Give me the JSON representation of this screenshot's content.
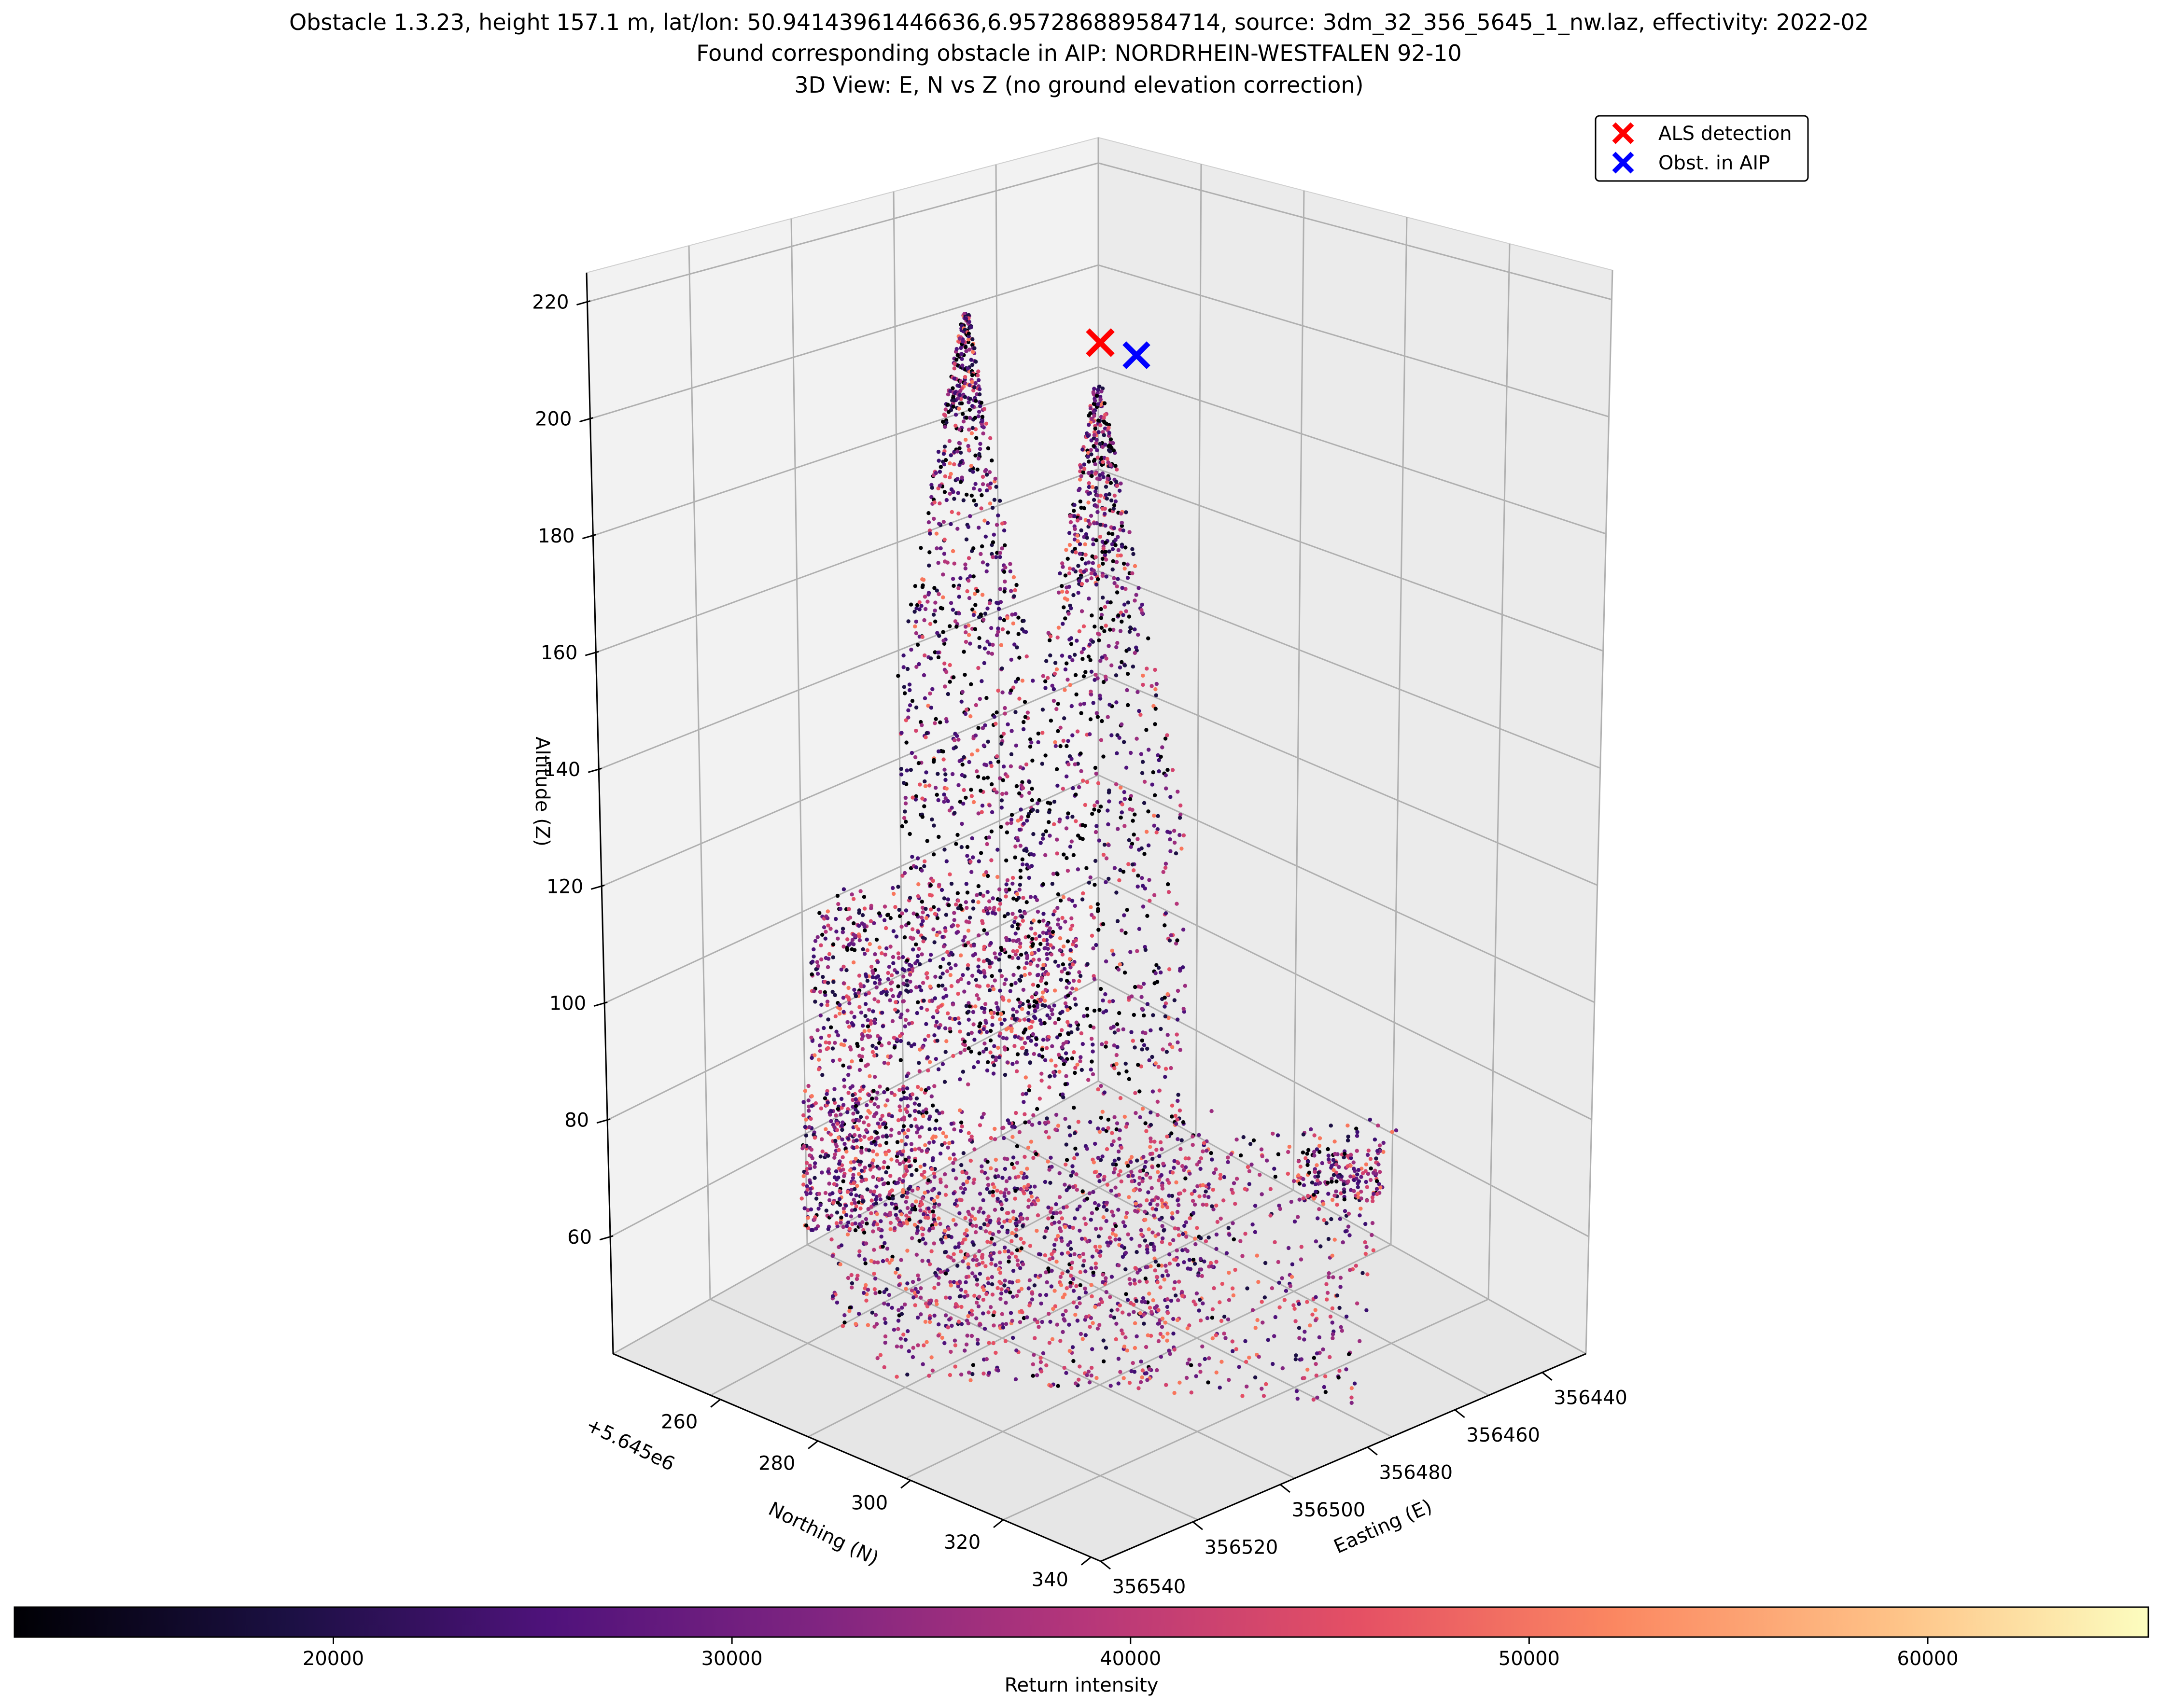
{
  "chart_data": {
    "type": "scatter",
    "subtype": "3d-point-cloud",
    "title_lines": [
      "Obstacle 1.3.23, height 157.1 m, lat/lon: 50.94143961446636,6.957286889584714, source: 3dm_32_356_5645_1_nw.laz, effectivity: 2022-02",
      "Found corresponding obstacle in AIP: NORDRHEIN-WESTFALEN 92-10",
      "3D View: E, N vs Z (no ground elevation correction)"
    ],
    "zlabel": "Altitude (Z)",
    "ylabel": "Northing (N)",
    "xlabel": "Easting (E)",
    "y_offset_label": "+5.645e6",
    "z_ticks": [
      "60",
      "80",
      "100",
      "120",
      "140",
      "160",
      "180",
      "200",
      "220"
    ],
    "y_ticks": [
      "260",
      "280",
      "300",
      "320",
      "340"
    ],
    "x_ticks": [
      "356440",
      "356460",
      "356480",
      "356500",
      "356520",
      "356540"
    ],
    "zlim": [
      40,
      225
    ],
    "colorbar": {
      "label": "Return intensity",
      "ticks": [
        "20000",
        "30000",
        "40000",
        "50000",
        "60000"
      ],
      "range": [
        12000,
        65535
      ],
      "colormap": "magma"
    },
    "legend": {
      "placement": "top-right",
      "entries": [
        {
          "label": "ALS detection",
          "marker": "x",
          "color": "#ff0000"
        },
        {
          "label": "Obst. in AIP",
          "marker": "x",
          "color": "#0000ff"
        }
      ]
    },
    "points": [
      {
        "name": "ALS detection",
        "z": 211.5,
        "color": "#ff0000"
      },
      {
        "name": "Obst. in AIP",
        "z": 209.5,
        "color": "#0000ff"
      }
    ],
    "grid": true
  }
}
